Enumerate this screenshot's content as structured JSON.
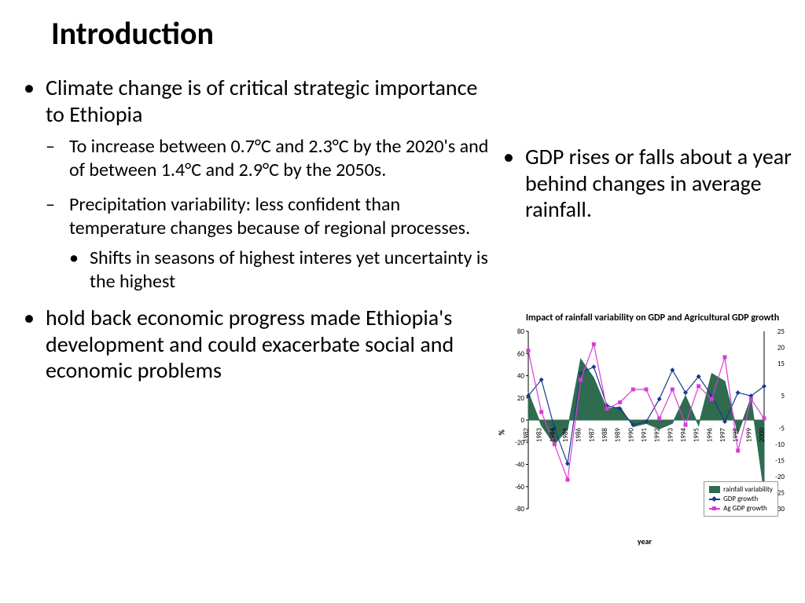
{
  "title": "Introduction",
  "left": {
    "b1": "Climate change is of critical strategic importance to Ethiopia",
    "b1a": "To increase between 0.7°C and 2.3°C by the 2020's and of between 1.4°C and 2.9°C by the 2050s.",
    "b1b": "Precipitation variability: less confident than temperature changes because of regional processes.",
    "b1b1": "Shifts in seasons of highest interes yet uncertainty is the highest",
    "b2": "hold back economic progress made Ethiopia's development and could exacerbate social and economic problems"
  },
  "right": {
    "b1": "GDP  rises or falls about a year behind changes in average rainfall."
  },
  "chart": {
    "title": "Impact of rainfall variability on GDP and Agricultural GDP growth",
    "y_label": "%",
    "x_label": "year",
    "years": [
      "1982",
      "1983",
      "1984",
      "1985",
      "1986",
      "1987",
      "1988",
      "1989",
      "1990",
      "1991",
      "1992",
      "1993",
      "1994",
      "1995",
      "1996",
      "1997",
      "1998",
      "1999",
      "2000"
    ],
    "y1_ticks": [
      -80,
      -60,
      -40,
      -20,
      0,
      20,
      40,
      60,
      80
    ],
    "y1_lim": [
      -80,
      80
    ],
    "y2_ticks_visible": [
      25,
      20,
      15,
      5,
      -5,
      -10,
      -15,
      -20,
      -25,
      -30
    ],
    "y2_lim": [
      -30,
      25
    ],
    "rainfall_variability": [
      25,
      -5,
      -22,
      -8,
      55,
      38,
      10,
      12,
      -6,
      -3,
      -8,
      -3,
      22,
      -5,
      42,
      35,
      -12,
      20,
      -65
    ],
    "gdp_growth": [
      5,
      10,
      -5,
      -16,
      12,
      14,
      2,
      1,
      -4,
      -3,
      4,
      13,
      6,
      11,
      5,
      -3,
      6,
      5,
      8
    ],
    "ag_gdp_growth": [
      19,
      0,
      -10,
      -21,
      10,
      21,
      1,
      3,
      7,
      7,
      -2,
      7,
      -4,
      8,
      4,
      17,
      -12,
      4,
      -2
    ],
    "colors": {
      "rainfall_fill": "#2f6b4f",
      "rainfall_stroke": "#2f6b4f",
      "gdp_line": "#1a3a8a",
      "gdp_marker": "#1a3a8a",
      "ag_line": "#d83cd8",
      "ag_marker": "#d83cd8",
      "axis": "#000000",
      "tick_text": "#000000",
      "background": "#ffffff"
    },
    "font_sizes": {
      "title": 12,
      "axis_label": 10,
      "tick": 9,
      "legend": 9
    },
    "legend": {
      "rainfall": "rainfall variability",
      "gdp": "GDP growth",
      "ag": "Ag GDP growth"
    }
  }
}
